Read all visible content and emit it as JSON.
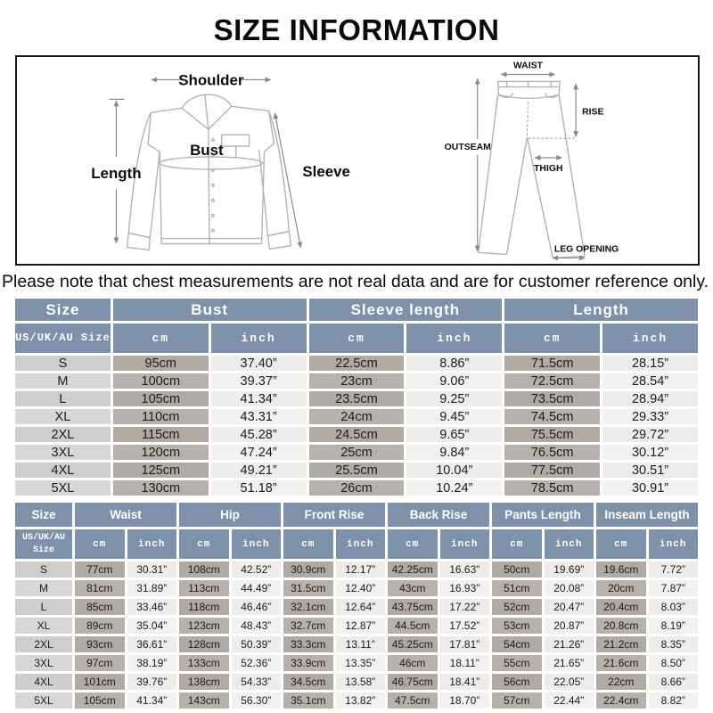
{
  "page": {
    "title": "SIZE INFORMATION",
    "note": "Please note that chest measurements are not real data and are for customer reference only."
  },
  "colors": {
    "header_bg": "#7d92aa",
    "size_cell_bg": "#cfcecd",
    "cm_cell_bg": "#afaaa3",
    "inch_cell_bg": "#edecea"
  },
  "shirt_diagram": {
    "shoulder_label": "Shoulder",
    "length_label": "Length",
    "bust_label": "Bust",
    "sleeve_label": "Sleeve"
  },
  "pants_diagram": {
    "waist_label": "WAIST",
    "rise_label": "RISE",
    "outseam_label": "OUTSEAM",
    "thigh_label": "THIGH",
    "leg_opening_label": "LEG OPENING"
  },
  "top_table": {
    "groups": [
      "Size",
      "Bust",
      "Sleeve length",
      "Length"
    ],
    "size_header": "US/UK/AU Size",
    "unit_headers": [
      "cm",
      "inch"
    ],
    "rows": [
      {
        "size": "S",
        "cells": [
          "95cm",
          "37.40”",
          "22.5cm",
          "8.86”",
          "71.5cm",
          "28.15”"
        ]
      },
      {
        "size": "M",
        "cells": [
          "100cm",
          "39.37”",
          "23cm",
          "9.06”",
          "72.5cm",
          "28.54”"
        ]
      },
      {
        "size": "L",
        "cells": [
          "105cm",
          "41.34”",
          "23.5cm",
          "9.25”",
          "73.5cm",
          "28.94”"
        ]
      },
      {
        "size": "XL",
        "cells": [
          "110cm",
          "43.31”",
          "24cm",
          "9.45”",
          "74.5cm",
          "29.33”"
        ]
      },
      {
        "size": "2XL",
        "cells": [
          "115cm",
          "45.28”",
          "24.5cm",
          "9.65”",
          "75.5cm",
          "29.72”"
        ]
      },
      {
        "size": "3XL",
        "cells": [
          "120cm",
          "47.24”",
          "25cm",
          "9.84”",
          "76.5cm",
          "30.12”"
        ]
      },
      {
        "size": "4XL",
        "cells": [
          "125cm",
          "49.21”",
          "25.5cm",
          "10.04”",
          "77.5cm",
          "30.51”"
        ]
      },
      {
        "size": "5XL",
        "cells": [
          "130cm",
          "51.18”",
          "26cm",
          "10.24”",
          "78.5cm",
          "30.91”"
        ]
      }
    ]
  },
  "bottom_table": {
    "groups": [
      "Size",
      "Waist",
      "Hip",
      "Front Rise",
      "Back Rise",
      "Pants Length",
      "Inseam Length"
    ],
    "size_header": "US/UK/AU Size",
    "unit_headers": [
      "cm",
      "inch"
    ],
    "rows": [
      {
        "size": "S",
        "cells": [
          "77cm",
          "30.31”",
          "108cm",
          "42.52”",
          "30.9cm",
          "12.17”",
          "42.25cm",
          "16.63”",
          "50cm",
          "19.69”",
          "19.6cm",
          "7.72”"
        ]
      },
      {
        "size": "M",
        "cells": [
          "81cm",
          "31.89”",
          "113cm",
          "44.49”",
          "31.5cm",
          "12.40”",
          "43cm",
          "16.93”",
          "51cm",
          "20.08”",
          "20cm",
          "7.87”"
        ]
      },
      {
        "size": "L",
        "cells": [
          "85cm",
          "33.46”",
          "118cm",
          "46.46”",
          "32.1cm",
          "12.64”",
          "43.75cm",
          "17.22”",
          "52cm",
          "20.47”",
          "20.4cm",
          "8.03”"
        ]
      },
      {
        "size": "XL",
        "cells": [
          "89cm",
          "35.04”",
          "123cm",
          "48.43”",
          "32.7cm",
          "12.87”",
          "44.5cm",
          "17.52”",
          "53cm",
          "20.87”",
          "20.8cm",
          "8.19”"
        ]
      },
      {
        "size": "2XL",
        "cells": [
          "93cm",
          "36.61”",
          "128cm",
          "50.39”",
          "33.3cm",
          "13.11”",
          "45.25cm",
          "17.81”",
          "54cm",
          "21.26”",
          "21.2cm",
          "8.35”"
        ]
      },
      {
        "size": "3XL",
        "cells": [
          "97cm",
          "38.19”",
          "133cm",
          "52.36”",
          "33.9cm",
          "13.35”",
          "46cm",
          "18.11”",
          "55cm",
          "21.65”",
          "21.6cm",
          "8.50”"
        ]
      },
      {
        "size": "4XL",
        "cells": [
          "101cm",
          "39.76”",
          "138cm",
          "54.33”",
          "34.5cm",
          "13.58”",
          "46.75cm",
          "18.41”",
          "56cm",
          "22.05”",
          "22cm",
          "8.66”"
        ]
      },
      {
        "size": "5XL",
        "cells": [
          "105cm",
          "41.34”",
          "143cm",
          "56.30”",
          "35.1cm",
          "13.82”",
          "47.5cm",
          "18.70”",
          "57cm",
          "22.44”",
          "22.4cm",
          "8.82”"
        ]
      }
    ]
  }
}
